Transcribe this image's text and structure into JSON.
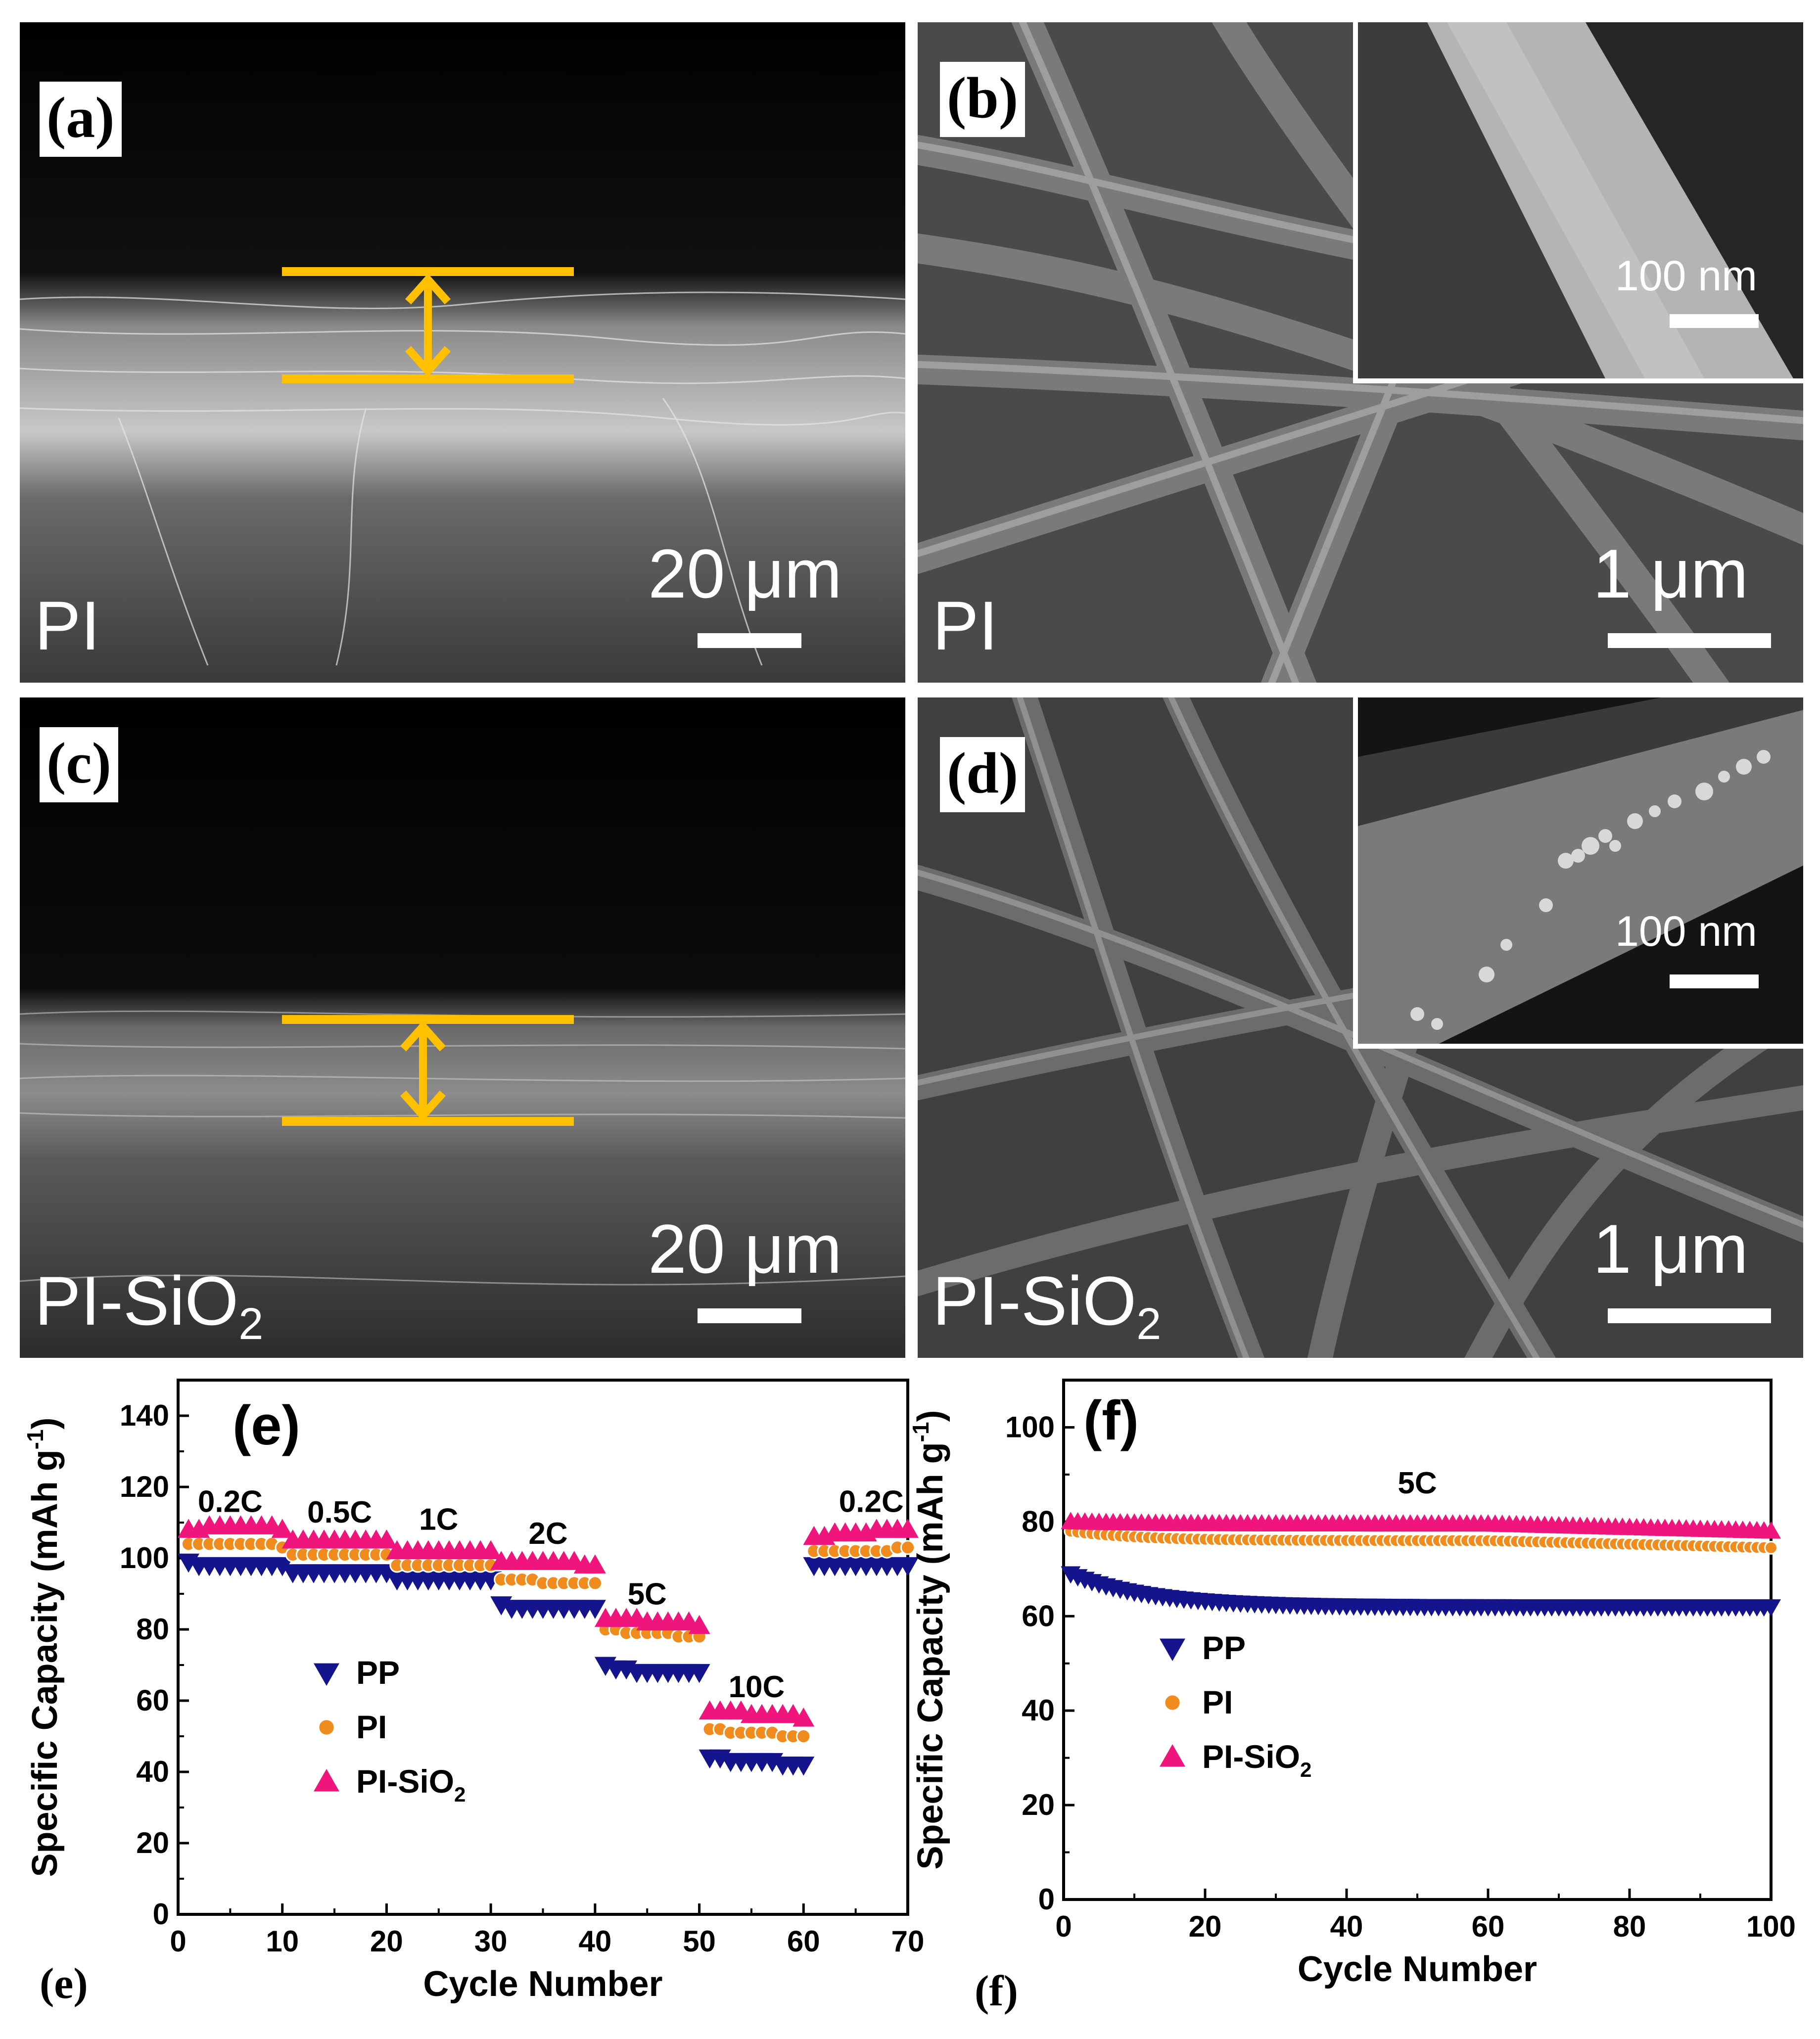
{
  "sem_panels": {
    "a": {
      "letter": "(a)",
      "material": "PI",
      "scale": "20 μm"
    },
    "b": {
      "letter": "(b)",
      "material": "PI",
      "scale": "1 μm",
      "inset_scale": "100 nm"
    },
    "c": {
      "letter": "(c)",
      "material_base": "PI-SiO",
      "material_sub": "2",
      "scale": "20 μm"
    },
    "d": {
      "letter": "(d)",
      "material_base": "PI-SiO",
      "material_sub": "2",
      "scale": "1 μm",
      "inset_scale": "100 nm"
    }
  },
  "captions": {
    "e": "(e)",
    "f": "(f)"
  },
  "colors": {
    "PP": "#14148c",
    "PI": "#f08c1e",
    "PI_SiO2": "#f0147d",
    "marker_bar": "#ffc000"
  },
  "chart_data": [
    {
      "panel": "(e)",
      "type": "scatter",
      "xlabel": "Cycle Number",
      "ylabel": "Specific Capacity (mAh g",
      "ylabel_sup": "-1",
      "ylabel_end": ")",
      "xlim": [
        0,
        70
      ],
      "ylim": [
        0,
        150
      ],
      "xticks": [
        0,
        10,
        20,
        30,
        40,
        50,
        60,
        70
      ],
      "yticks": [
        0,
        20,
        40,
        60,
        80,
        100,
        120,
        140
      ],
      "legend_position": "center-left",
      "legend": [
        {
          "name": "PP",
          "marker": "triangle-down"
        },
        {
          "name": "PI",
          "marker": "circle"
        },
        {
          "name_base": "PI-SiO",
          "name_sub": "2",
          "marker": "triangle-up"
        }
      ],
      "annotations": [
        {
          "text": "0.2C",
          "x": 5,
          "y": 113
        },
        {
          "text": "0.5C",
          "x": 15.5,
          "y": 110
        },
        {
          "text": "1C",
          "x": 25,
          "y": 108
        },
        {
          "text": "2C",
          "x": 35.5,
          "y": 104
        },
        {
          "text": "5C",
          "x": 45,
          "y": 87
        },
        {
          "text": "10C",
          "x": 55.5,
          "y": 61
        },
        {
          "text": "0.2C",
          "x": 66.5,
          "y": 113
        }
      ],
      "series": [
        {
          "name": "PP",
          "segments": [
            {
              "x_range": [
                1,
                10
              ],
              "values": [
                99,
                98,
                98,
                98,
                98,
                98,
                98,
                98,
                98,
                98
              ]
            },
            {
              "x_range": [
                11,
                20
              ],
              "values": [
                96,
                96,
                96,
                96,
                96,
                96,
                96,
                96,
                96,
                96
              ]
            },
            {
              "x_range": [
                21,
                30
              ],
              "values": [
                94,
                94,
                94,
                94,
                94,
                94,
                94,
                94,
                94,
                94
              ]
            },
            {
              "x_range": [
                31,
                40
              ],
              "values": [
                87,
                86,
                86,
                86,
                86,
                86,
                86,
                86,
                86,
                86
              ]
            },
            {
              "x_range": [
                41,
                50
              ],
              "values": [
                70,
                69,
                69,
                68,
                68,
                68,
                68,
                68,
                68,
                68
              ]
            },
            {
              "x_range": [
                51,
                60
              ],
              "values": [
                44,
                44,
                43,
                43,
                43,
                43,
                43,
                42,
                42,
                42
              ]
            },
            {
              "x_range": [
                61,
                70
              ],
              "values": [
                98,
                98,
                98,
                98,
                98,
                98,
                98,
                98,
                98,
                98
              ]
            }
          ]
        },
        {
          "name": "PI",
          "segments": [
            {
              "x_range": [
                1,
                10
              ],
              "values": [
                104,
                104,
                104,
                104,
                104,
                104,
                104,
                104,
                104,
                103
              ]
            },
            {
              "x_range": [
                11,
                20
              ],
              "values": [
                101,
                101,
                101,
                101,
                101,
                101,
                101,
                101,
                101,
                101
              ]
            },
            {
              "x_range": [
                21,
                30
              ],
              "values": [
                98,
                98,
                98,
                98,
                98,
                98,
                98,
                98,
                98,
                98
              ]
            },
            {
              "x_range": [
                31,
                40
              ],
              "values": [
                94,
                94,
                94,
                94,
                93,
                93,
                93,
                93,
                93,
                93
              ]
            },
            {
              "x_range": [
                41,
                50
              ],
              "values": [
                80,
                80,
                79,
                79,
                79,
                79,
                79,
                78,
                78,
                78
              ]
            },
            {
              "x_range": [
                51,
                60
              ],
              "values": [
                52,
                52,
                51,
                51,
                51,
                51,
                51,
                50,
                50,
                50
              ]
            },
            {
              "x_range": [
                61,
                70
              ],
              "values": [
                102,
                102,
                102,
                102,
                102,
                102,
                102,
                102,
                103,
                103
              ]
            }
          ]
        },
        {
          "name": "PI-SiO2",
          "segments": [
            {
              "x_range": [
                1,
                10
              ],
              "values": [
                108,
                108,
                109,
                109,
                109,
                109,
                109,
                109,
                109,
                108
              ]
            },
            {
              "x_range": [
                11,
                20
              ],
              "values": [
                105,
                105,
                105,
                105,
                105,
                105,
                105,
                105,
                105,
                105
              ]
            },
            {
              "x_range": [
                21,
                30
              ],
              "values": [
                102,
                102,
                102,
                102,
                102,
                102,
                102,
                102,
                102,
                102
              ]
            },
            {
              "x_range": [
                31,
                40
              ],
              "values": [
                99,
                99,
                99,
                99,
                99,
                99,
                99,
                99,
                98,
                98
              ]
            },
            {
              "x_range": [
                41,
                50
              ],
              "values": [
                83,
                83,
                83,
                83,
                82,
                82,
                82,
                82,
                82,
                81
              ]
            },
            {
              "x_range": [
                51,
                60
              ],
              "values": [
                57,
                57,
                57,
                57,
                56,
                56,
                56,
                56,
                56,
                55
              ]
            },
            {
              "x_range": [
                61,
                70
              ],
              "values": [
                106,
                106,
                107,
                107,
                107,
                107,
                108,
                108,
                108,
                108
              ]
            }
          ]
        }
      ]
    },
    {
      "panel": "(f)",
      "type": "scatter",
      "xlabel": "Cycle Number",
      "ylabel": "Specific Capacity (mAh g",
      "ylabel_sup": "-1",
      "ylabel_end": ")",
      "xlim": [
        0,
        100
      ],
      "ylim": [
        0,
        110
      ],
      "xticks": [
        0,
        20,
        40,
        60,
        80,
        100
      ],
      "yticks": [
        0,
        20,
        40,
        60,
        80,
        100
      ],
      "legend_position": "center-left",
      "legend": [
        {
          "name": "PP",
          "marker": "triangle-down"
        },
        {
          "name": "PI",
          "marker": "circle"
        },
        {
          "name_base": "PI-SiO",
          "name_sub": "2",
          "marker": "triangle-up"
        }
      ],
      "annotations": [
        {
          "text": "5C",
          "x": 50,
          "y": 86
        }
      ],
      "series": [
        {
          "name": "PP",
          "x_range": [
            1,
            100
          ],
          "start": 69,
          "decay_to": 62,
          "decay_rate": 0.09,
          "end_value": 62
        },
        {
          "name": "PI",
          "x_range": [
            1,
            100
          ],
          "start": 78,
          "decay_to": 76,
          "decay_rate": 0.1,
          "end_value": 74.5
        },
        {
          "name": "PI-SiO2",
          "x_range": [
            1,
            100
          ],
          "start": 80,
          "decay_to": 79.5,
          "decay_rate": 0.1,
          "end_value": 78
        }
      ]
    }
  ]
}
